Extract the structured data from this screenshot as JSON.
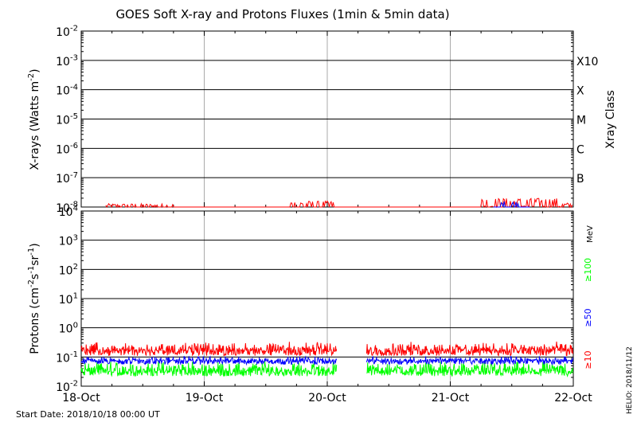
{
  "title": "GOES Soft X-ray and Protons Fluxes   (1min & 5min data)",
  "footer": {
    "start_date": "Start Date: 2018/10/18 00:00 UT",
    "credit": "HELIO: 2018/11/12"
  },
  "colors": {
    "red": "#ff0000",
    "blue": "#0000ff",
    "green": "#00ff00",
    "grid": "#aaaaaa",
    "axis": "#000000"
  },
  "chart_data": [
    {
      "type": "line",
      "panel": "xray",
      "ylabel": "X-rays (Watts m",
      "ylabel_sup": "-2",
      "ylabel_tail": ")",
      "right_label": "Xray Class",
      "scale": "log",
      "ylim": [
        1e-08,
        0.01
      ],
      "y_ticks": [
        {
          "exp": -2,
          "base": "10",
          "sup": "-2"
        },
        {
          "exp": -3,
          "base": "10",
          "sup": "-3"
        },
        {
          "exp": -4,
          "base": "10",
          "sup": "-4"
        },
        {
          "exp": -5,
          "base": "10",
          "sup": "-5"
        },
        {
          "exp": -6,
          "base": "10",
          "sup": "-6"
        },
        {
          "exp": -7,
          "base": "10",
          "sup": "-7"
        },
        {
          "exp": -8,
          "base": "10",
          "sup": "-8"
        }
      ],
      "classes": [
        {
          "label": "X10",
          "exp": -3
        },
        {
          "label": "X",
          "exp": -4
        },
        {
          "label": "M",
          "exp": -5
        },
        {
          "label": "C",
          "exp": -6
        },
        {
          "label": "B",
          "exp": -7
        }
      ],
      "x_ticks": [
        "18-Oct",
        "19-Oct",
        "20-Oct",
        "21-Oct",
        "22-Oct"
      ],
      "series": [
        {
          "color": "red",
          "baseline": 8.6e-09,
          "x_start": 0.2,
          "x_end": 4.0,
          "activity": [
            {
              "x": [
                0.2,
                0.75
              ],
              "peak": 1.3e-08
            },
            {
              "x": [
                1.7,
                2.05
              ],
              "peak": 1.6e-08
            },
            {
              "x": [
                3.25,
                3.9
              ],
              "peak": 2e-08
            },
            {
              "x": [
                3.9,
                4.0
              ],
              "peak": 1.4e-08
            }
          ]
        },
        {
          "color": "blue",
          "baseline": 8.6e-09,
          "x_start": 3.35,
          "x_end": 3.65,
          "activity": [
            {
              "x": [
                3.4,
                3.6
              ],
              "peak": 1.6e-08
            }
          ]
        }
      ]
    },
    {
      "type": "line",
      "panel": "protons",
      "ylabel": "Protons (cm",
      "ylabel_sup1": "-2",
      "ylabel_mid": "s",
      "ylabel_sup2": "-1",
      "ylabel_mid2": "sr",
      "ylabel_sup3": "-1",
      "ylabel_tail": ")",
      "scale": "log",
      "ylim": [
        0.01,
        10000
      ],
      "y_ticks": [
        {
          "exp": 4,
          "base": "10",
          "sup": "4"
        },
        {
          "exp": 3,
          "base": "10",
          "sup": "3"
        },
        {
          "exp": 2,
          "base": "10",
          "sup": "2"
        },
        {
          "exp": 1,
          "base": "10",
          "sup": "1"
        },
        {
          "exp": 0,
          "base": "10",
          "sup": "0"
        },
        {
          "exp": -1,
          "base": "10",
          "sup": "-1"
        },
        {
          "exp": -2,
          "base": "10",
          "sup": "-2"
        }
      ],
      "threshold_line": 10,
      "x_ticks": [
        "18-Oct",
        "19-Oct",
        "20-Oct",
        "21-Oct",
        "22-Oct"
      ],
      "gap": [
        2.08,
        2.32
      ],
      "series": [
        {
          "name": "≥10",
          "color": "red",
          "median": 0.17,
          "low": 0.11,
          "high": 0.34
        },
        {
          "name": "≥50",
          "color": "blue",
          "median": 0.075,
          "low": 0.055,
          "high": 0.11
        },
        {
          "name": "≥100",
          "color": "green",
          "median": 0.033,
          "low": 0.022,
          "high": 0.075
        }
      ],
      "unit": "MeV"
    }
  ]
}
